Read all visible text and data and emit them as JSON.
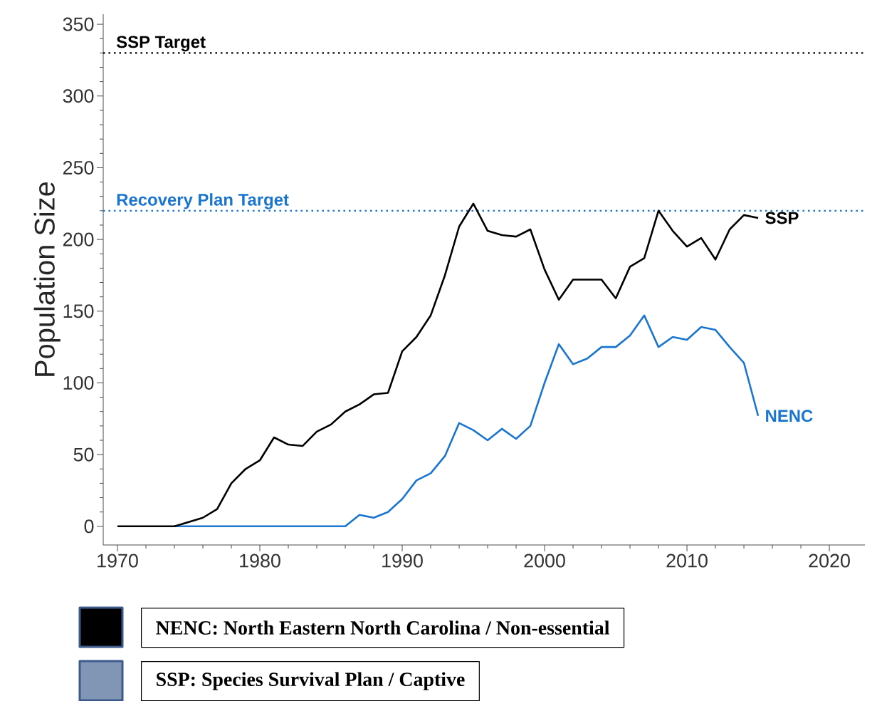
{
  "chart_data": {
    "type": "line",
    "ylabel": "Population Size",
    "x": [
      1970,
      1971,
      1972,
      1973,
      1974,
      1975,
      1976,
      1977,
      1978,
      1979,
      1980,
      1981,
      1982,
      1983,
      1984,
      1985,
      1986,
      1987,
      1988,
      1989,
      1990,
      1991,
      1992,
      1993,
      1994,
      1995,
      1996,
      1997,
      1998,
      1999,
      2000,
      2001,
      2002,
      2003,
      2004,
      2005,
      2006,
      2007,
      2008,
      2009,
      2010,
      2011,
      2012,
      2013,
      2014,
      2015
    ],
    "series": [
      {
        "name": "SSP",
        "color": "#000000",
        "values": [
          0,
          0,
          0,
          0,
          0,
          3,
          6,
          12,
          30,
          40,
          46,
          62,
          57,
          56,
          66,
          71,
          80,
          85,
          92,
          93,
          122,
          132,
          147,
          175,
          209,
          225,
          206,
          203,
          202,
          207,
          179,
          158,
          172,
          172,
          172,
          159,
          181,
          187,
          220,
          206,
          195,
          201,
          186,
          207,
          217,
          215
        ]
      },
      {
        "name": "NENC",
        "color": "#1a75cf",
        "values": [
          null,
          null,
          null,
          null,
          0,
          0,
          0,
          0,
          0,
          0,
          0,
          0,
          0,
          0,
          0,
          0,
          0,
          8,
          6,
          10,
          19,
          32,
          37,
          49,
          72,
          67,
          60,
          68,
          61,
          70,
          100,
          127,
          113,
          117,
          125,
          125,
          133,
          147,
          125,
          132,
          130,
          139,
          137,
          125,
          114,
          77
        ]
      }
    ],
    "xlim": [
      1969,
      2022.5
    ],
    "ylim": [
      -13,
      357
    ],
    "xticks": [
      1970,
      1980,
      1990,
      2000,
      2010,
      2020
    ],
    "yticks": [
      0,
      50,
      100,
      150,
      200,
      250,
      300,
      350
    ],
    "ref_lines": [
      {
        "axis": "y",
        "value": 330,
        "label": "SSP Target",
        "color": "#000000",
        "line_style": "dotted"
      },
      {
        "axis": "y",
        "value": 220,
        "label": "Recovery Plan Target",
        "color": "#1a75cf",
        "line_style": "dotted"
      }
    ],
    "annotations": [
      "NENC: North Eastern North Carolina / Non-essential",
      "SSP: Species Survival Plan / Captive"
    ]
  }
}
